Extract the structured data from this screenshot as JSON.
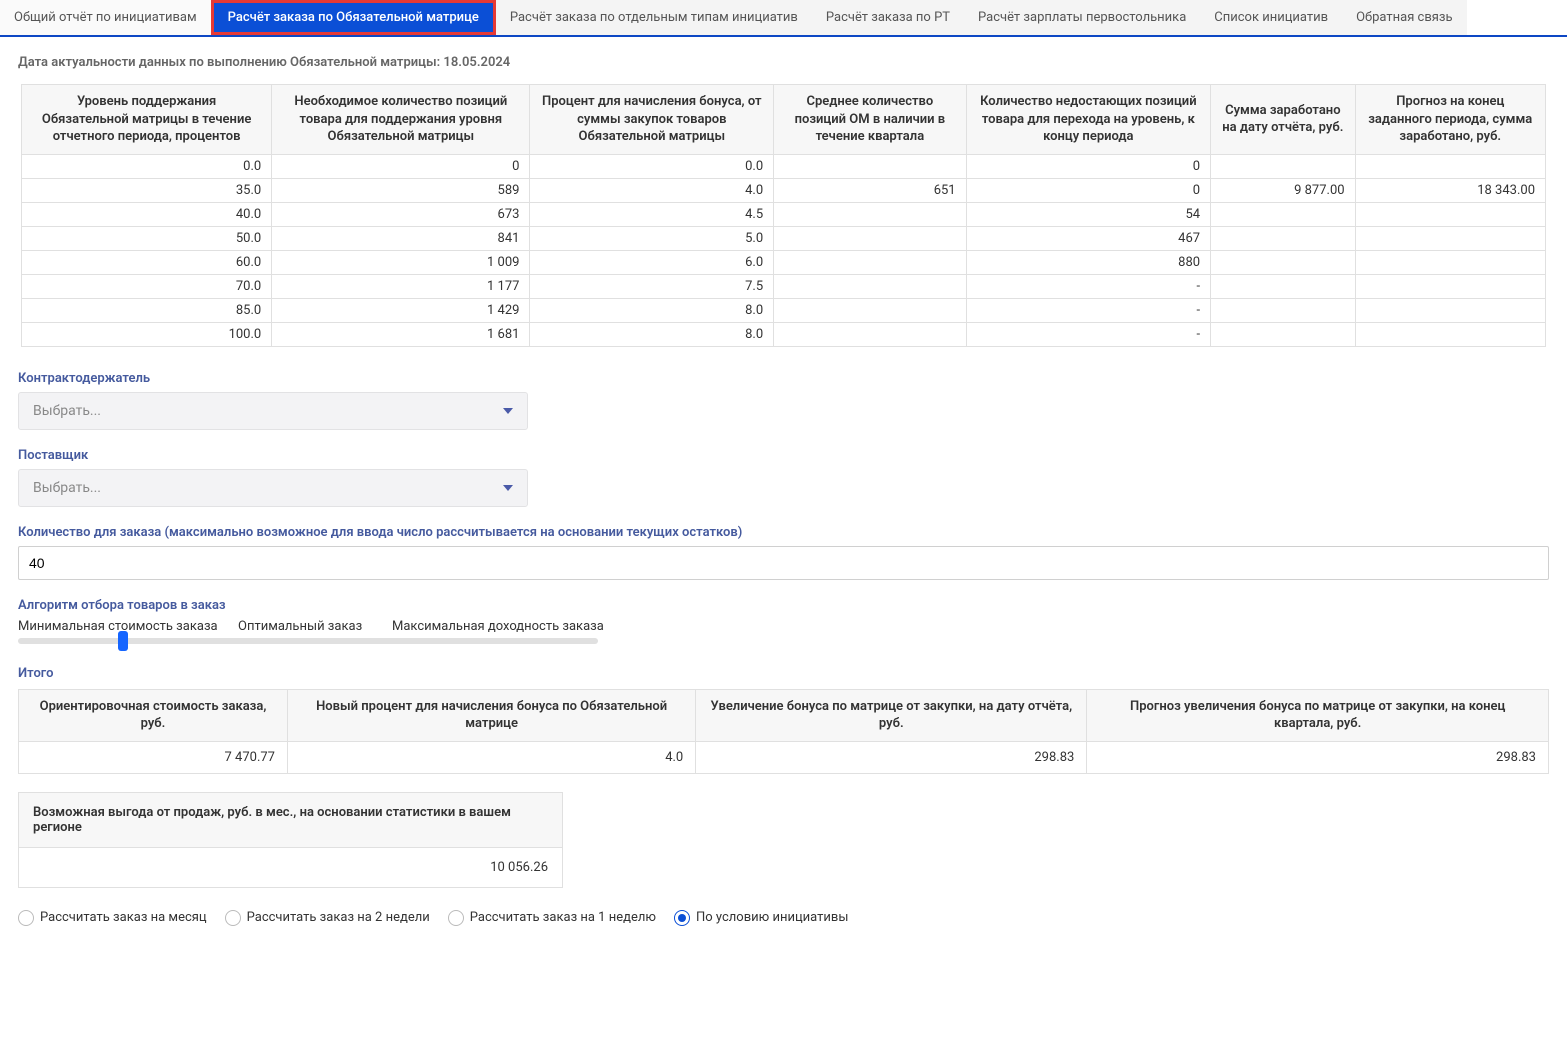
{
  "tabs": [
    {
      "label": "Общий отчёт по инициативам",
      "active": false
    },
    {
      "label": "Расчёт заказа по Обязательной матрице",
      "active": true
    },
    {
      "label": "Расчёт заказа по отдельным типам инициатив",
      "active": false
    },
    {
      "label": "Расчёт заказа по РТ",
      "active": false
    },
    {
      "label": "Расчёт зарплаты первостольника",
      "active": false
    },
    {
      "label": "Список инициатив",
      "active": false
    },
    {
      "label": "Обратная связь",
      "active": false
    }
  ],
  "relevance_text": "Дата актуальности данных по выполнению Обязательной матрицы: 18.05.2024",
  "main_table": {
    "headers": [
      "Уровень поддержания Обязательной матрицы в течение отчетного периода, процентов",
      "Необходимое количество позиций товара для поддержания уровня Обязательной матрицы",
      "Процент для начисления бонуса, от суммы закупок товаров Обязательной матрицы",
      "Среднее количество позиций ОМ в наличии в течение квартала",
      "Количество недостающих позиций товара для перехода на уровень, к концу периода",
      "Сумма заработано на дату отчёта, руб.",
      "Прогноз на конец заданного периода, сумма заработано, руб."
    ],
    "rows": [
      [
        "0.0",
        "0",
        "0.0",
        "",
        "0",
        "",
        ""
      ],
      [
        "35.0",
        "589",
        "4.0",
        "651",
        "0",
        "9 877.00",
        "18 343.00"
      ],
      [
        "40.0",
        "673",
        "4.5",
        "",
        "54",
        "",
        ""
      ],
      [
        "50.0",
        "841",
        "5.0",
        "",
        "467",
        "",
        ""
      ],
      [
        "60.0",
        "1 009",
        "6.0",
        "",
        "880",
        "",
        ""
      ],
      [
        "70.0",
        "1 177",
        "7.5",
        "",
        "-",
        "",
        ""
      ],
      [
        "85.0",
        "1 429",
        "8.0",
        "",
        "-",
        "",
        ""
      ],
      [
        "100.0",
        "1 681",
        "8.0",
        "",
        "-",
        "",
        ""
      ]
    ]
  },
  "form": {
    "contractor_label": "Контрактодержатель",
    "supplier_label": "Поставщик",
    "select_placeholder": "Выбрать...",
    "qty_label": "Количество для заказа (максимально возможное для ввода число рассчитывается на основании текущих остатков)",
    "qty_value": "40",
    "algorithm_label": "Алгоритм отбора товаров в заказ",
    "slider": {
      "opt1": "Минимальная стоимость заказа",
      "opt2": "Оптимальный заказ",
      "opt3": "Максимальная доходность заказа"
    }
  },
  "totals": {
    "title": "Итого",
    "headers": [
      "Ориентировочная стоимость заказа, руб.",
      "Новый процент для начисления бонуса по Обязательной матрице",
      "Увеличение бонуса по матрице от закупки, на дату отчёта, руб.",
      "Прогноз увеличения бонуса по матрице от закупки, на конец квартала, руб."
    ],
    "row": [
      "7 470.77",
      "4.0",
      "298.83",
      "298.83"
    ]
  },
  "benefit": {
    "header": "Возможная выгода от продаж, руб. в мес., на основании статистики в вашем регионе",
    "value": "10 056.26"
  },
  "radios": [
    {
      "label": "Рассчитать заказ на месяц",
      "selected": false
    },
    {
      "label": "Рассчитать заказ на 2 недели",
      "selected": false
    },
    {
      "label": "Рассчитать заказ на 1 неделю",
      "selected": false
    },
    {
      "label": "По условию инициативы",
      "selected": true
    }
  ]
}
